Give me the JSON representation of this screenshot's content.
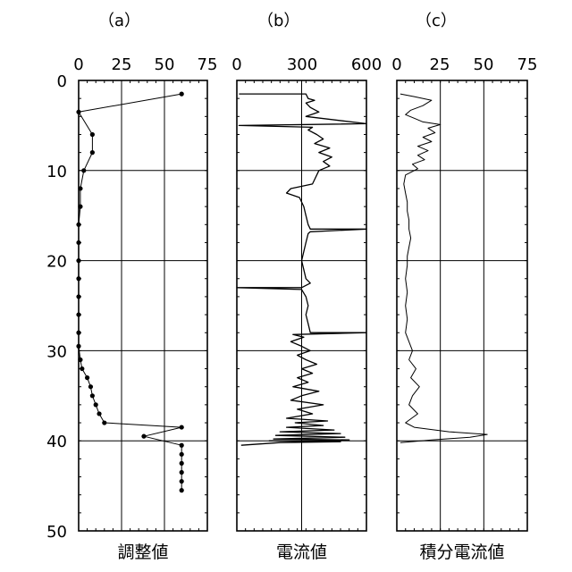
{
  "chart_data": [
    {
      "type": "line",
      "panel_label": "（a）",
      "xlabel": "調整値",
      "xlim": [
        0,
        75
      ],
      "x_ticks": [
        "0",
        "25",
        "50",
        "75"
      ],
      "ylim": [
        0,
        50
      ],
      "y_inverted": true,
      "y_ticks": [
        "0",
        "10",
        "20",
        "30",
        "40",
        "50"
      ],
      "grid": true,
      "markers": true,
      "series": [
        {
          "points": [
            [
              60,
              1.5
            ],
            [
              0,
              3.5
            ],
            [
              8,
              6
            ],
            [
              8,
              8
            ],
            [
              3,
              10
            ],
            [
              1,
              12
            ],
            [
              1,
              14
            ],
            [
              0,
              16
            ],
            [
              0,
              18
            ],
            [
              0,
              20
            ],
            [
              0,
              22
            ],
            [
              0,
              24
            ],
            [
              0,
              26
            ],
            [
              0,
              28
            ],
            [
              0,
              29.5
            ],
            [
              1,
              31
            ],
            [
              2,
              32
            ],
            [
              5,
              33
            ],
            [
              7,
              34
            ],
            [
              8,
              35
            ],
            [
              10,
              36
            ],
            [
              12,
              37
            ],
            [
              15,
              38
            ],
            [
              60,
              38.5
            ],
            [
              38,
              39.5
            ],
            [
              60,
              40.5
            ],
            [
              60,
              41.5
            ],
            [
              60,
              42.5
            ],
            [
              60,
              43.5
            ],
            [
              60,
              44.5
            ],
            [
              60,
              45.5
            ]
          ]
        }
      ]
    },
    {
      "type": "line",
      "panel_label": "（b）",
      "xlabel": "電流値",
      "xlim": [
        0,
        600
      ],
      "x_ticks": [
        "0",
        "300",
        "600"
      ],
      "ylim": [
        0,
        50
      ],
      "y_inverted": true,
      "grid": true,
      "markers": false,
      "series": [
        {
          "points": [
            [
              10,
              1.5
            ],
            [
              320,
              1.5
            ],
            [
              330,
              2
            ],
            [
              360,
              2.2
            ],
            [
              320,
              2.5
            ],
            [
              340,
              3
            ],
            [
              380,
              3.5
            ],
            [
              320,
              4
            ],
            [
              600,
              4.8
            ],
            [
              10,
              5
            ],
            [
              350,
              5.2
            ],
            [
              330,
              5.5
            ],
            [
              370,
              6
            ],
            [
              400,
              6.5
            ],
            [
              360,
              7
            ],
            [
              430,
              7.5
            ],
            [
              380,
              8
            ],
            [
              440,
              8.5
            ],
            [
              400,
              9
            ],
            [
              430,
              9.5
            ],
            [
              380,
              10
            ],
            [
              360,
              11
            ],
            [
              350,
              11.5
            ],
            [
              250,
              12
            ],
            [
              230,
              12.5
            ],
            [
              290,
              13
            ],
            [
              300,
              13.5
            ],
            [
              310,
              14
            ],
            [
              320,
              15
            ],
            [
              330,
              16
            ],
            [
              340,
              16.5
            ],
            [
              600,
              16.5
            ],
            [
              340,
              16.8
            ],
            [
              330,
              17
            ],
            [
              320,
              18
            ],
            [
              310,
              19
            ],
            [
              300,
              20
            ],
            [
              310,
              21
            ],
            [
              320,
              22
            ],
            [
              340,
              22.5
            ],
            [
              300,
              23
            ],
            [
              0,
              23
            ],
            [
              300,
              23.2
            ],
            [
              320,
              24
            ],
            [
              330,
              25
            ],
            [
              320,
              26
            ],
            [
              330,
              27
            ],
            [
              340,
              28
            ],
            [
              600,
              28
            ],
            [
              260,
              28.2
            ],
            [
              310,
              28.5
            ],
            [
              250,
              29
            ],
            [
              300,
              29.5
            ],
            [
              340,
              30
            ],
            [
              280,
              30.5
            ],
            [
              320,
              31
            ],
            [
              370,
              31.5
            ],
            [
              300,
              32
            ],
            [
              350,
              32.5
            ],
            [
              280,
              33
            ],
            [
              330,
              33.5
            ],
            [
              260,
              34
            ],
            [
              380,
              34.5
            ],
            [
              300,
              35
            ],
            [
              250,
              35.5
            ],
            [
              400,
              36
            ],
            [
              280,
              36.5
            ],
            [
              350,
              37
            ],
            [
              230,
              37.5
            ],
            [
              420,
              37.8
            ],
            [
              270,
              38
            ],
            [
              400,
              38.3
            ],
            [
              230,
              38.5
            ],
            [
              450,
              38.8
            ],
            [
              200,
              39
            ],
            [
              480,
              39.2
            ],
            [
              180,
              39.4
            ],
            [
              500,
              39.6
            ],
            [
              170,
              39.8
            ],
            [
              520,
              39.9
            ],
            [
              150,
              40
            ],
            [
              480,
              40.1
            ],
            [
              200,
              40.2
            ],
            [
              20,
              40.5
            ]
          ]
        }
      ]
    },
    {
      "type": "line",
      "panel_label": "（c）",
      "xlabel": "積分電流値",
      "xlim": [
        0,
        75
      ],
      "x_ticks": [
        "0",
        "25",
        "50",
        "75"
      ],
      "ylim": [
        0,
        50
      ],
      "y_inverted": true,
      "grid": true,
      "markers": false,
      "series": [
        {
          "points": [
            [
              2,
              1.5
            ],
            [
              10,
              1.8
            ],
            [
              20,
              2.2
            ],
            [
              15,
              2.8
            ],
            [
              8,
              3.3
            ],
            [
              5,
              3.8
            ],
            [
              10,
              4.2
            ],
            [
              15,
              4.6
            ],
            [
              25,
              4.9
            ],
            [
              18,
              5.3
            ],
            [
              22,
              5.8
            ],
            [
              15,
              6.3
            ],
            [
              20,
              6.8
            ],
            [
              12,
              7.3
            ],
            [
              18,
              7.8
            ],
            [
              12,
              8.3
            ],
            [
              16,
              8.8
            ],
            [
              9,
              9.3
            ],
            [
              12,
              9.8
            ],
            [
              5,
              10.5
            ],
            [
              4,
              11.5
            ],
            [
              5,
              12.5
            ],
            [
              6,
              13.5
            ],
            [
              6,
              14.5
            ],
            [
              7,
              15.5
            ],
            [
              7,
              16.5
            ],
            [
              8,
              17.5
            ],
            [
              7,
              18.5
            ],
            [
              6,
              19.5
            ],
            [
              6,
              20.5
            ],
            [
              5,
              22
            ],
            [
              6,
              23.5
            ],
            [
              5,
              25
            ],
            [
              6,
              26.5
            ],
            [
              5,
              28
            ],
            [
              7,
              29
            ],
            [
              9,
              30
            ],
            [
              7,
              31
            ],
            [
              11,
              32
            ],
            [
              8,
              33
            ],
            [
              13,
              34
            ],
            [
              9,
              35
            ],
            [
              7,
              36
            ],
            [
              12,
              37
            ],
            [
              5,
              38
            ],
            [
              10,
              38.5
            ],
            [
              30,
              39
            ],
            [
              52,
              39.3
            ],
            [
              42,
              39.6
            ],
            [
              20,
              39.9
            ],
            [
              2,
              40.2
            ]
          ]
        }
      ]
    }
  ]
}
